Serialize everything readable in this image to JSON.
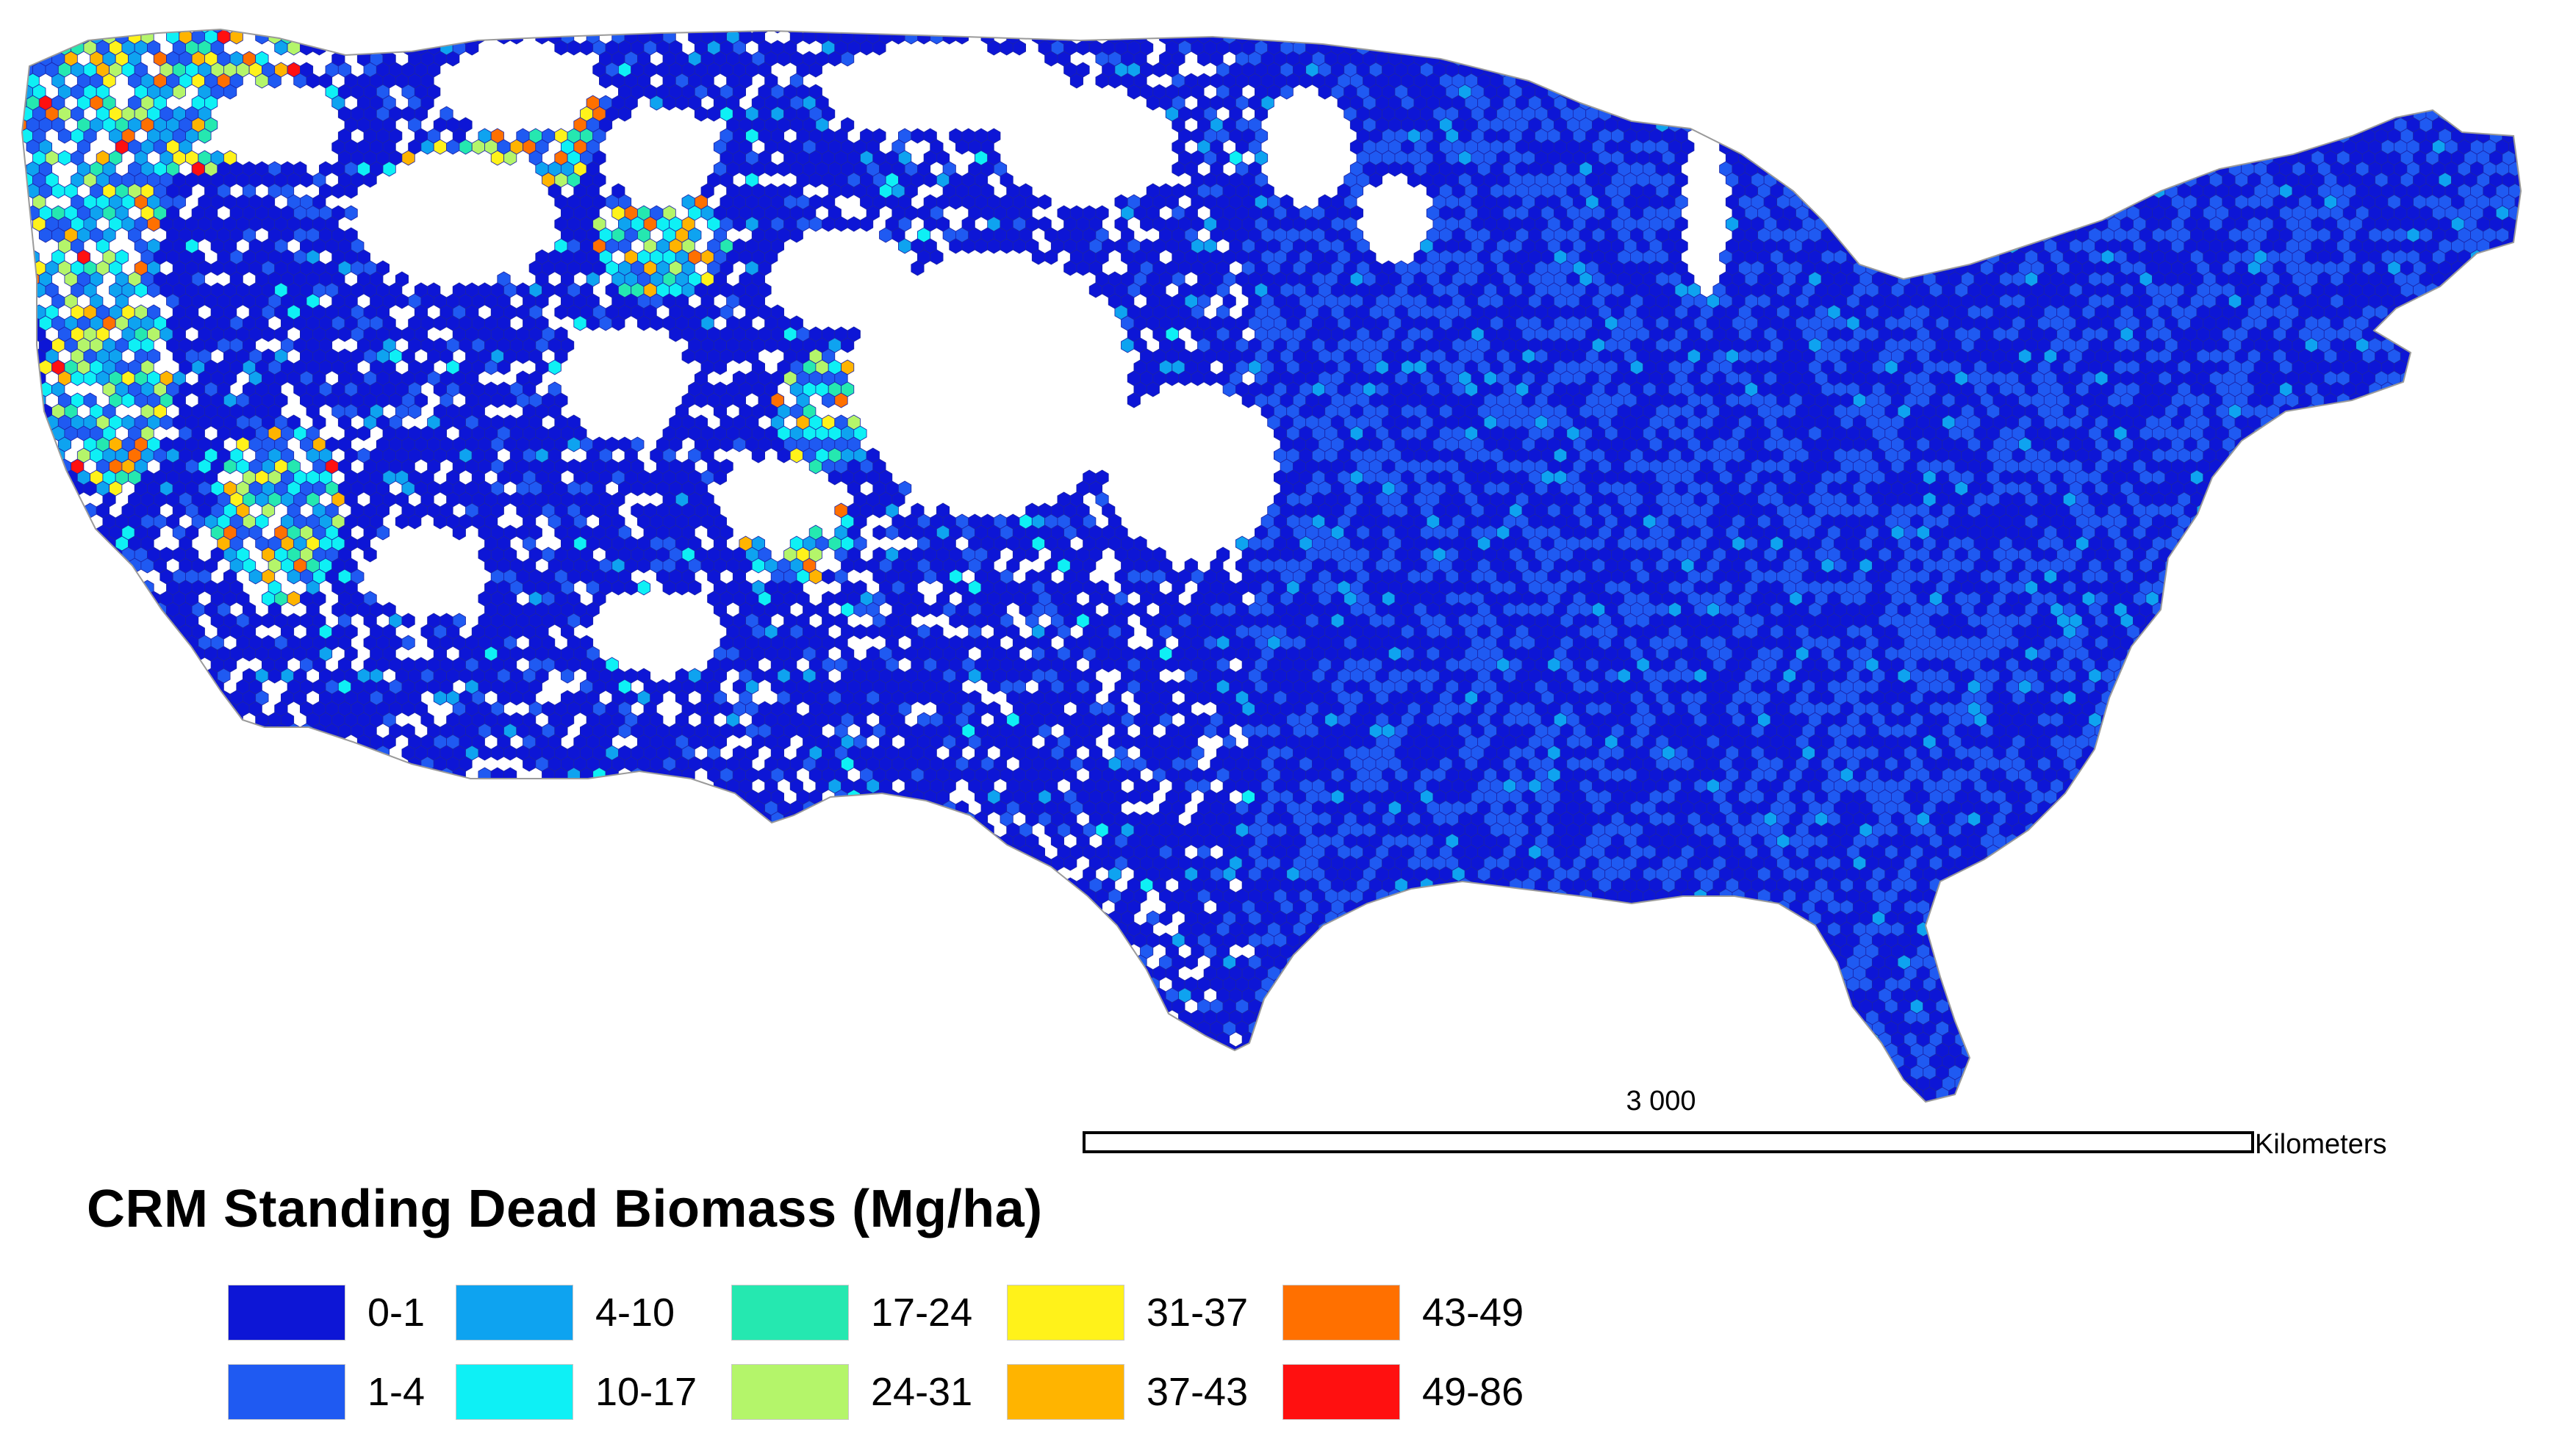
{
  "map": {
    "region": "Contiguous United States",
    "cell_shape": "hexagon",
    "background_color": "#ffffff",
    "outline_color": "#9a9a9a"
  },
  "scale_bar": {
    "value_label": "3 000",
    "unit_label": "Kilometers"
  },
  "legend": {
    "title": "CRM Standing Dead Biomass (Mg/ha)",
    "classes": [
      {
        "label": "0-1",
        "color": "#0d16d6"
      },
      {
        "label": "1-4",
        "color": "#1f5af2"
      },
      {
        "label": "4-10",
        "color": "#0ea3f0"
      },
      {
        "label": "10-17",
        "color": "#0ef0f5"
      },
      {
        "label": "17-24",
        "color": "#25e8b0"
      },
      {
        "label": "24-31",
        "color": "#b4f56a"
      },
      {
        "label": "31-37",
        "color": "#fff21a"
      },
      {
        "label": "37-43",
        "color": "#ffb400"
      },
      {
        "label": "43-49",
        "color": "#ff7000"
      },
      {
        "label": "49-86",
        "color": "#ff1010"
      }
    ]
  }
}
